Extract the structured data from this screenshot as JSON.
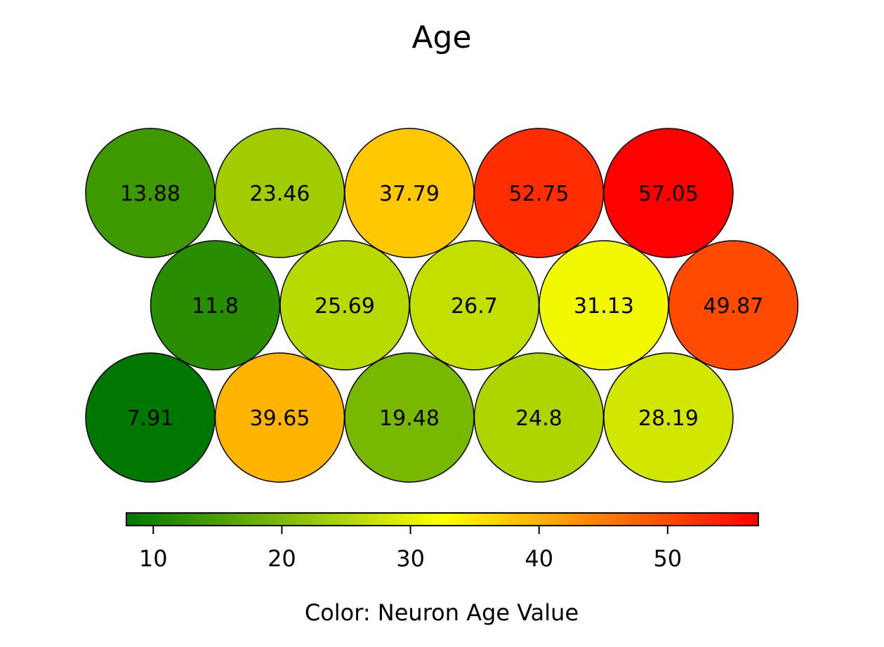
{
  "chart_data": {
    "type": "heatmap",
    "layout": "hexagonal-som",
    "title": "Age",
    "colorbar": {
      "label": "Color: Neuron Age Value",
      "ticks": [
        10,
        20,
        30,
        40,
        50
      ],
      "range": [
        7.91,
        57.05
      ],
      "colors": [
        "#007800",
        "#ffff00",
        "#ff0000"
      ],
      "orientation": "horizontal",
      "placement": "bottom"
    },
    "grid": {
      "rows": 3,
      "cols": 5
    },
    "neurons": [
      {
        "row": 0,
        "col": 0,
        "value": 13.88,
        "label": "13.88"
      },
      {
        "row": 0,
        "col": 1,
        "value": 23.46,
        "label": "23.46"
      },
      {
        "row": 0,
        "col": 2,
        "value": 37.79,
        "label": "37.79"
      },
      {
        "row": 0,
        "col": 3,
        "value": 52.75,
        "label": "52.75"
      },
      {
        "row": 0,
        "col": 4,
        "value": 57.05,
        "label": "57.05"
      },
      {
        "row": 1,
        "col": 0,
        "value": 11.8,
        "label": "11.8"
      },
      {
        "row": 1,
        "col": 1,
        "value": 25.69,
        "label": "25.69"
      },
      {
        "row": 1,
        "col": 2,
        "value": 26.7,
        "label": "26.7"
      },
      {
        "row": 1,
        "col": 3,
        "value": 31.13,
        "label": "31.13"
      },
      {
        "row": 1,
        "col": 4,
        "value": 49.87,
        "label": "49.87"
      },
      {
        "row": 2,
        "col": 0,
        "value": 7.91,
        "label": "7.91"
      },
      {
        "row": 2,
        "col": 1,
        "value": 39.65,
        "label": "39.65"
      },
      {
        "row": 2,
        "col": 2,
        "value": 19.48,
        "label": "19.48"
      },
      {
        "row": 2,
        "col": 3,
        "value": 24.8,
        "label": "24.8"
      },
      {
        "row": 2,
        "col": 4,
        "value": 28.19,
        "label": "28.19"
      }
    ]
  }
}
